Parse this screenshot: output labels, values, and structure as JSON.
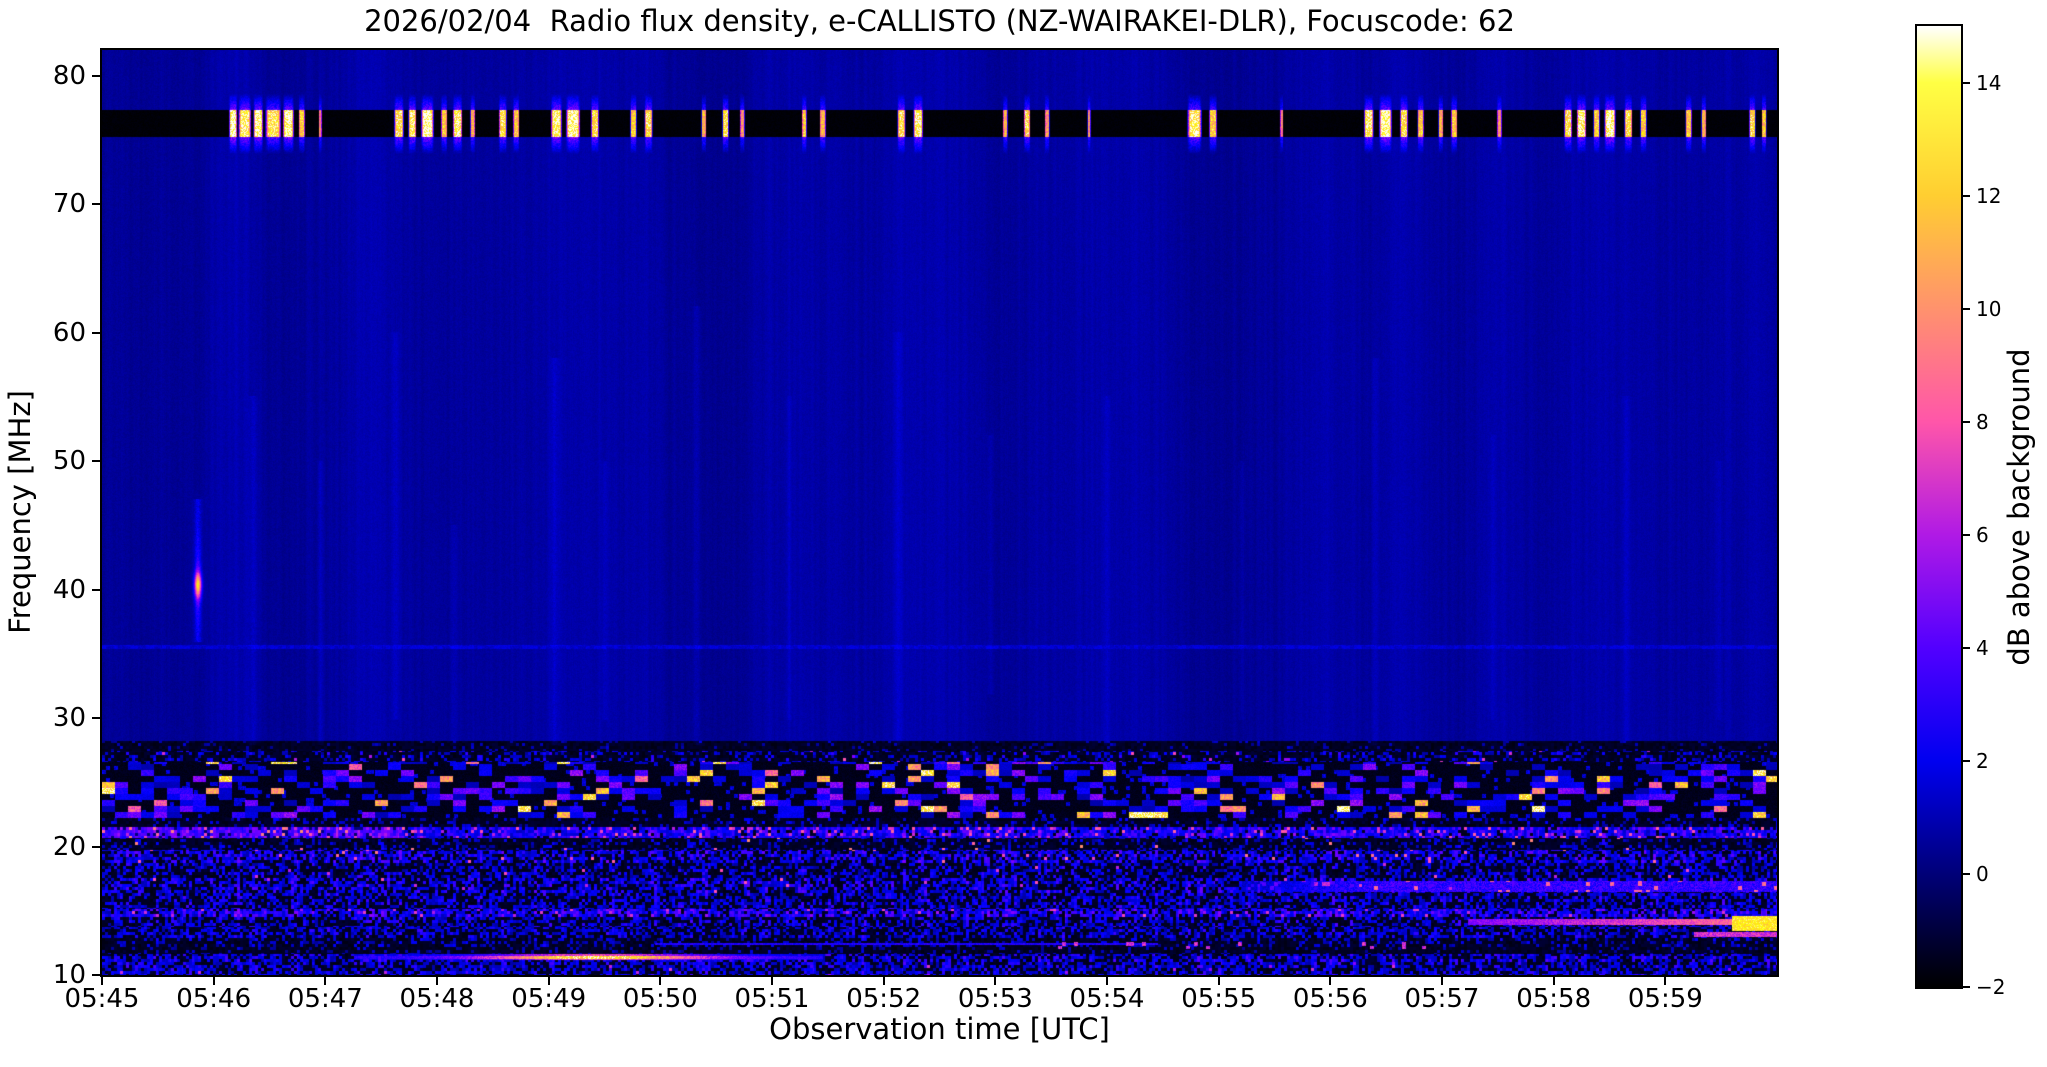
{
  "title": "2026/02/04  Radio flux density, e-CALLISTO (NZ-WAIRAKEI-DLR), Focuscode: 62",
  "chart_data": {
    "type": "heatmap",
    "subtype": "radio-spectrogram",
    "title": "2026/02/04  Radio flux density, e-CALLISTO (NZ-WAIRAKEI-DLR), Focuscode: 62",
    "xlabel": "Observation time [UTC]",
    "ylabel": "Frequency [MHz]",
    "x_ticks": [
      "05:45",
      "05:46",
      "05:47",
      "05:48",
      "05:49",
      "05:50",
      "05:51",
      "05:52",
      "05:53",
      "05:54",
      "05:55",
      "05:56",
      "05:57",
      "05:58",
      "05:59"
    ],
    "x_range_utc": [
      "05:45:00",
      "06:00:00"
    ],
    "time_span_minutes": 15,
    "y_ticks": [
      "80",
      "70",
      "60",
      "50",
      "40",
      "30",
      "20",
      "10"
    ],
    "y_tick_values": [
      80,
      70,
      60,
      50,
      40,
      30,
      20,
      10
    ],
    "y_range_mhz": [
      10,
      82
    ],
    "grid": false,
    "legend": "none",
    "colorbar": {
      "label": "dB above background",
      "tick_labels": [
        "14",
        "12",
        "10",
        "8",
        "6",
        "4",
        "2",
        "0",
        "−2"
      ],
      "tick_values": [
        14,
        12,
        10,
        8,
        6,
        4,
        2,
        0,
        -2
      ],
      "range_db": [
        -2,
        15
      ],
      "colormap": "gnuplot2",
      "stops": [
        {
          "pos": 0.0,
          "color": "#000000"
        },
        {
          "pos": 0.1176,
          "color": "#000078"
        },
        {
          "pos": 0.2353,
          "color": "#0000f0"
        },
        {
          "pos": 0.3529,
          "color": "#5200ff"
        },
        {
          "pos": 0.4706,
          "color": "#b01ae5"
        },
        {
          "pos": 0.5882,
          "color": "#ff56a9"
        },
        {
          "pos": 0.7059,
          "color": "#ff926d"
        },
        {
          "pos": 0.8235,
          "color": "#ffce31"
        },
        {
          "pos": 0.9412,
          "color": "#ffff44"
        },
        {
          "pos": 1.0,
          "color": "#ffffff"
        }
      ]
    },
    "background": {
      "mean_db": 0.65,
      "texture": "vertical-streaks",
      "color_hex": "#10108c"
    },
    "rfi_band": {
      "f_mhz": [
        75.2,
        77.3
      ],
      "flare_mhz": 1.3,
      "bursts": [
        [
          0.078,
          5,
          15
        ],
        [
          0.085,
          8,
          14
        ],
        [
          0.093,
          6,
          15
        ],
        [
          0.102,
          10,
          13
        ],
        [
          0.111,
          7,
          15
        ],
        [
          0.119,
          4,
          12
        ],
        [
          0.13,
          2,
          9
        ],
        [
          0.177,
          6,
          13
        ],
        [
          0.185,
          5,
          14
        ],
        [
          0.194,
          8,
          15
        ],
        [
          0.204,
          4,
          12
        ],
        [
          0.212,
          6,
          14
        ],
        [
          0.221,
          3,
          11
        ],
        [
          0.239,
          5,
          13
        ],
        [
          0.247,
          4,
          12
        ],
        [
          0.271,
          7,
          14
        ],
        [
          0.281,
          9,
          15
        ],
        [
          0.294,
          5,
          13
        ],
        [
          0.317,
          4,
          12
        ],
        [
          0.326,
          5,
          13
        ],
        [
          0.359,
          3,
          11
        ],
        [
          0.372,
          4,
          13
        ],
        [
          0.382,
          3,
          10
        ],
        [
          0.419,
          3,
          12
        ],
        [
          0.43,
          4,
          11
        ],
        [
          0.477,
          5,
          13
        ],
        [
          0.487,
          6,
          14
        ],
        [
          0.539,
          3,
          11
        ],
        [
          0.552,
          4,
          13
        ],
        [
          0.564,
          3,
          10
        ],
        [
          0.589,
          2,
          10
        ],
        [
          0.652,
          9,
          14
        ],
        [
          0.663,
          5,
          12
        ],
        [
          0.704,
          2,
          9
        ],
        [
          0.756,
          6,
          14
        ],
        [
          0.766,
          8,
          15
        ],
        [
          0.777,
          5,
          13
        ],
        [
          0.787,
          4,
          12
        ],
        [
          0.799,
          3,
          11
        ],
        [
          0.807,
          4,
          12
        ],
        [
          0.834,
          3,
          10
        ],
        [
          0.875,
          5,
          13
        ],
        [
          0.883,
          6,
          14
        ],
        [
          0.892,
          4,
          12
        ],
        [
          0.9,
          7,
          15
        ],
        [
          0.911,
          5,
          13
        ],
        [
          0.92,
          4,
          12
        ],
        [
          0.947,
          4,
          12
        ],
        [
          0.956,
          3,
          11
        ],
        [
          0.985,
          4,
          13
        ],
        [
          0.992,
          3,
          12
        ]
      ]
    },
    "faint_vertical_streaks": [
      [
        0.057,
        1.4,
        2.5,
        36,
        47
      ],
      [
        0.09,
        0.5,
        3,
        28,
        55
      ],
      [
        0.13,
        0.45,
        2,
        28,
        50
      ],
      [
        0.175,
        0.5,
        2.5,
        30,
        60
      ],
      [
        0.21,
        0.4,
        2,
        28,
        45
      ],
      [
        0.27,
        0.55,
        3,
        28,
        58
      ],
      [
        0.3,
        0.4,
        2,
        30,
        50
      ],
      [
        0.355,
        0.5,
        2.5,
        28,
        62
      ],
      [
        0.41,
        0.35,
        2,
        30,
        55
      ],
      [
        0.475,
        0.45,
        3,
        28,
        60
      ],
      [
        0.53,
        0.35,
        2,
        32,
        52
      ],
      [
        0.6,
        0.4,
        2.5,
        28,
        55
      ],
      [
        0.68,
        0.35,
        2,
        30,
        50
      ],
      [
        0.76,
        0.4,
        2.5,
        28,
        58
      ],
      [
        0.83,
        0.35,
        2,
        30,
        52
      ],
      [
        0.91,
        0.4,
        2.5,
        28,
        55
      ],
      [
        0.965,
        0.35,
        2,
        30,
        50
      ]
    ],
    "noise_bands": [
      {
        "f": [
          28.2,
          27.4
        ],
        "type": "speckle",
        "d": 0.1,
        "v": [
          0.3,
          1.5
        ]
      },
      {
        "f": [
          27.4,
          26.6
        ],
        "type": "speckle",
        "d": 0.3,
        "v": [
          0.6,
          2.8
        ],
        "bp": 0.01,
        "bv": [
          5,
          8
        ]
      },
      {
        "f": [
          26.6,
          22.25
        ],
        "type": "blocks",
        "present": 0.4,
        "tiers": [
          [
            0.6,
            0.8,
            2.8
          ],
          [
            0.86,
            3.0,
            5.5
          ],
          [
            1.01,
            8.0,
            14.5
          ]
        ]
      },
      {
        "f": [
          22.25,
          21.55
        ],
        "type": "speckle",
        "d": 0.18,
        "v": [
          0.5,
          2.2
        ]
      },
      {
        "f": [
          21.55,
          20.65
        ],
        "type": "speckle",
        "d": 0.85,
        "v": [
          1.4,
          4.2
        ],
        "bp": 0.09,
        "bv": [
          5.5,
          8.5
        ]
      },
      {
        "f": [
          20.65,
          19.75
        ],
        "type": "speckle",
        "d": 0.22,
        "v": [
          0.5,
          2.4
        ],
        "bp": 0.008,
        "bv": [
          8,
          10
        ]
      },
      {
        "f": [
          19.75,
          18.75
        ],
        "type": "speckle",
        "d": 0.6,
        "v": [
          1.0,
          3.8
        ],
        "bp": 0.015,
        "bv": [
          7,
          9
        ]
      },
      {
        "f": [
          18.75,
          17.55
        ],
        "type": "speckle",
        "d": 0.42,
        "v": [
          0.6,
          3.0
        ],
        "bp": 0.004,
        "bv": [
          6,
          8
        ]
      },
      {
        "f": [
          17.55,
          16.35
        ],
        "type": "speckle",
        "d": 0.55,
        "v": [
          0.9,
          3.6
        ],
        "bp": 0.006,
        "bv": [
          6,
          8
        ]
      },
      {
        "f": [
          16.35,
          15.15
        ],
        "type": "speckle",
        "d": 0.5,
        "v": [
          0.8,
          3.2
        ]
      },
      {
        "f": [
          15.15,
          14.5
        ],
        "type": "speckle",
        "d": 0.75,
        "v": [
          1.3,
          4.3
        ],
        "bp": 0.03,
        "bv": [
          5.5,
          7.5
        ]
      },
      {
        "f": [
          14.5,
          13.75
        ],
        "type": "speckle",
        "d": 0.45,
        "v": [
          0.8,
          3.2
        ]
      },
      {
        "f": [
          13.75,
          12.85
        ],
        "type": "speckle",
        "d": 0.5,
        "v": [
          0.8,
          3.0
        ]
      },
      {
        "f": [
          12.85,
          12.15
        ],
        "type": "speckle",
        "d": 0.28,
        "v": [
          0.5,
          2.3
        ]
      },
      {
        "f": [
          12.15,
          11.65
        ],
        "type": "speckle",
        "d": 0.15,
        "v": [
          0.3,
          1.6
        ]
      },
      {
        "f": [
          11.65,
          11.05
        ],
        "type": "speckle",
        "d": 0.6,
        "v": [
          0.9,
          3.4
        ]
      },
      {
        "f": [
          11.05,
          10.0
        ],
        "type": "speckle",
        "d": 0.58,
        "v": [
          0.8,
          3.2
        ],
        "bp": 0.008,
        "bv": [
          5,
          7
        ]
      }
    ],
    "features": [
      {
        "name": "point-burst-40mhz",
        "type": "blob",
        "t": 0.057,
        "f": 40.4,
        "peak_db": 9.5,
        "sigma_x": 2.4,
        "sigma_y": 8.5
      },
      {
        "name": "faint-35mhz-dotted-line",
        "type": "band",
        "f": [
          35.35,
          35.65
        ],
        "t": [
          0.0,
          1.0
        ],
        "base": [
          0.9,
          1.6
        ],
        "dots": {
          "p": 0.45,
          "v": [
            1.4,
            2.0
          ]
        }
      },
      {
        "name": "pink-21mhz-left-boost",
        "type": "boost",
        "f": [
          20.65,
          21.55
        ],
        "t": [
          0.0,
          0.18
        ],
        "add": 1.3
      },
      {
        "name": "enhanced-17mhz-right-band",
        "type": "band",
        "f": [
          16.45,
          17.35
        ],
        "t": [
          0.68,
          1.0
        ],
        "base": [
          2.0,
          4.5
        ],
        "dots": {
          "p": 0.06,
          "v": [
            7.5,
            9.5
          ]
        },
        "ramp": true
      },
      {
        "name": "bright-14mhz-streak-right",
        "type": "band",
        "f": [
          13.9,
          14.35
        ],
        "t": [
          0.815,
          1.0
        ],
        "base": [
          7.5,
          10.5
        ],
        "grow": true
      },
      {
        "name": "bright-14mhz-end-blob",
        "type": "band",
        "f": [
          13.45,
          14.6
        ],
        "t": [
          0.973,
          1.0
        ],
        "base": [
          11.5,
          14.5
        ]
      },
      {
        "name": "pink-13mhz-right-end",
        "type": "band",
        "f": [
          12.95,
          13.35
        ],
        "t": [
          0.95,
          1.0
        ],
        "base": [
          5.5,
          8.0
        ]
      },
      {
        "name": "thin-12mhz-line",
        "type": "band",
        "f": [
          12.3,
          12.52
        ],
        "t": [
          0.33,
          0.63
        ],
        "base": [
          2.2,
          3.6
        ]
      },
      {
        "name": "pink-dots-12mhz",
        "type": "dots",
        "f": [
          12.0,
          12.6
        ],
        "t": [
          0.53,
          0.79
        ],
        "p": 0.1,
        "v": [
          5.5,
          8.0
        ]
      },
      {
        "name": "bright-11mhz-streak",
        "type": "gstreak",
        "f": [
          11.15,
          11.6
        ],
        "t": [
          0.15,
          0.43
        ],
        "center": 0.295,
        "sigma": 0.045,
        "peak": 10.5,
        "floor": 3.0
      }
    ]
  }
}
